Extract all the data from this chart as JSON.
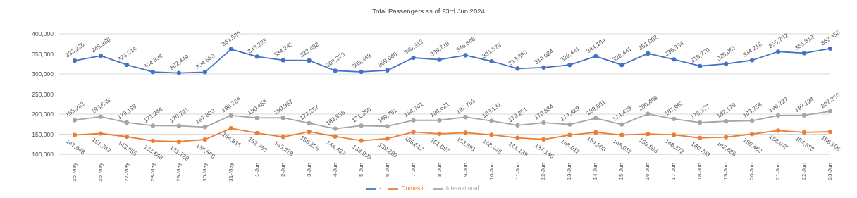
{
  "chart_data": {
    "type": "line",
    "title": "Total Passengers as of 23rd Jun 2024",
    "categories": [
      "25-May",
      "26-May",
      "27-May",
      "28-May",
      "29-May",
      "30-May",
      "31-May",
      "1-Jun",
      "2-Jun",
      "3-Jun",
      "4-Jun",
      "5-Jun",
      "6-Jun",
      "7-Jun",
      "8-Jun",
      "9-Jun",
      "10-Jun",
      "11-Jun",
      "12-Jun",
      "13-Jun",
      "14-Jun",
      "15-Jun",
      "16-Jun",
      "17-Jun",
      "18-Jun",
      "19-Jun",
      "20-Jun",
      "21-Jun",
      "22-Jun",
      "23-Jun"
    ],
    "series": [
      {
        "name": "-",
        "color": "#4472c4",
        "values": [
          333226,
          345380,
          323014,
          304894,
          302449,
          304663,
          361585,
          343223,
          334245,
          333482,
          308373,
          305349,
          309040,
          340313,
          335718,
          346646,
          331579,
          313390,
          316024,
          322441,
          344104,
          322441,
          351002,
          336334,
          319770,
          325061,
          334218,
          355702,
          351812,
          363456
        ],
        "value_labels": [
          "333,226",
          "345,380",
          "323,014",
          "304,894",
          "302,449",
          "304,663",
          "361,585",
          "343,223",
          "334,245",
          "333,482",
          "308,373",
          "305,349",
          "309,040",
          "340,313",
          "335,718",
          "346,646",
          "331,579",
          "313,390",
          "316,024",
          "322,441",
          "344,104",
          "322,441",
          "351,002",
          "336,334",
          "319,770",
          "325,061",
          "334,218",
          "355,702",
          "351,812",
          "363,456"
        ]
      },
      {
        "name": "Domestic",
        "color": "#ed7d31",
        "values": [
          147943,
          151742,
          143855,
          133648,
          131728,
          136860,
          164816,
          152760,
          143278,
          156225,
          144437,
          133999,
          139289,
          155612,
          151097,
          153891,
          148448,
          141139,
          137140,
          148012,
          154503,
          148012,
          150503,
          148372,
          140793,
          142886,
          150462,
          158975,
          154688,
          156106
        ],
        "value_labels": [
          "147,943",
          "151,742",
          "143,855",
          "133,648",
          "131,728",
          "136,860",
          "164,816",
          "152,760",
          "143,278",
          "156,225",
          "144,437",
          "133,999",
          "139,289",
          "155,612",
          "151,097",
          "153,891",
          "148,448",
          "141,139",
          "137,140",
          "148,012",
          "154,503",
          "148,012",
          "150,503",
          "148,372",
          "140,793",
          "142,886",
          "150,462",
          "158,975",
          "154,688",
          "156,106"
        ]
      },
      {
        "name": "International",
        "color": "#a5a5a5",
        "values": [
          185283,
          193638,
          179159,
          171246,
          170721,
          167803,
          196769,
          190463,
          190967,
          177257,
          163936,
          171350,
          169751,
          184701,
          184621,
          192755,
          183131,
          172251,
          178884,
          174429,
          189601,
          174429,
          200499,
          187962,
          178977,
          182175,
          183756,
          196727,
          197124,
          207350
        ],
        "value_labels": [
          "185,283",
          "193,638",
          "179,159",
          "171,246",
          "170,721",
          "167,803",
          "196,769",
          "190,463",
          "190,967",
          "177,257",
          "163,936",
          "171,350",
          "169,751",
          "184,701",
          "184,621",
          "192,755",
          "183,131",
          "172,251",
          "178,884",
          "174,429",
          "189,601",
          "174,429",
          "200,499",
          "187,962",
          "178,977",
          "182,175",
          "183,756",
          "196,727",
          "197,124",
          "207,350"
        ]
      }
    ],
    "ylim": [
      100000,
      400000
    ],
    "yticks": [
      {
        "value": 100000,
        "label": "100,000"
      },
      {
        "value": 150000,
        "label": "150,000"
      },
      {
        "value": 200000,
        "label": "200,000"
      },
      {
        "value": 250000,
        "label": "250,000"
      },
      {
        "value": 300000,
        "label": "300,000"
      },
      {
        "value": 350000,
        "label": "350,000"
      },
      {
        "value": 400000,
        "label": "400,000"
      }
    ],
    "grid": "y",
    "legend": "bottom",
    "marker": "circle",
    "line_style": "solid"
  }
}
